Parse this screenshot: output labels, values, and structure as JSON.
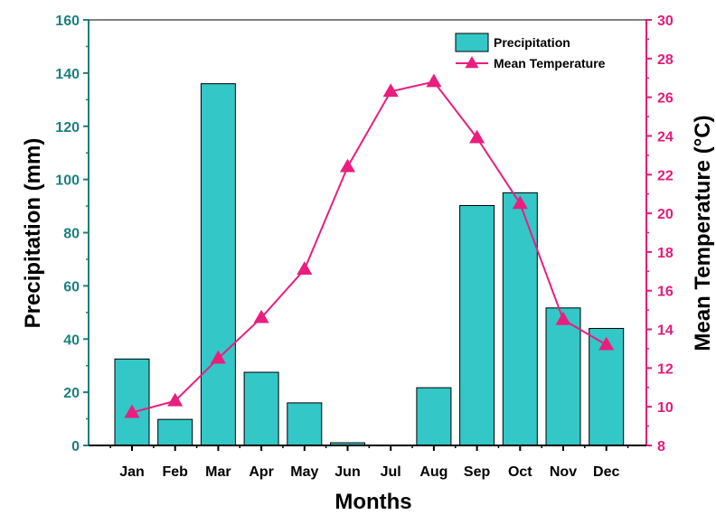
{
  "chart_data": {
    "type": "bar+line",
    "categories": [
      "Jan",
      "Feb",
      "Mar",
      "Apr",
      "May",
      "Jun",
      "Jul",
      "Aug",
      "Sep",
      "Oct",
      "Nov",
      "Dec"
    ],
    "series": [
      {
        "name": "Precipitation",
        "type": "bar",
        "axis": "left",
        "values": [
          32.5,
          9.8,
          136,
          27.5,
          16,
          1,
          0,
          21.7,
          90.2,
          95,
          51.7,
          44
        ]
      },
      {
        "name": "Mean Temperature",
        "type": "line",
        "axis": "right",
        "values": [
          9.7,
          10.3,
          12.5,
          14.6,
          17.1,
          22.4,
          26.3,
          26.8,
          23.9,
          20.5,
          14.5,
          13.2
        ]
      }
    ],
    "xlabel": "Months",
    "ylabel": "Precipitation (mm)",
    "y2label": "Mean Temperature (°C)",
    "ylim": [
      0,
      160
    ],
    "y2lim": [
      8,
      30
    ],
    "yticks": [
      "0",
      "20",
      "40",
      "60",
      "80",
      "100",
      "120",
      "140",
      "160"
    ],
    "y2ticks": [
      "8",
      "10",
      "12",
      "14",
      "16",
      "18",
      "20",
      "22",
      "24",
      "26",
      "28",
      "30"
    ],
    "legend_position": "top-right",
    "grid": false,
    "colors": {
      "bar_fill": "#33c7c7",
      "left_axis": "#1c7f7f",
      "right_axis": "#e6197a",
      "line": "#ea1e7e"
    }
  }
}
